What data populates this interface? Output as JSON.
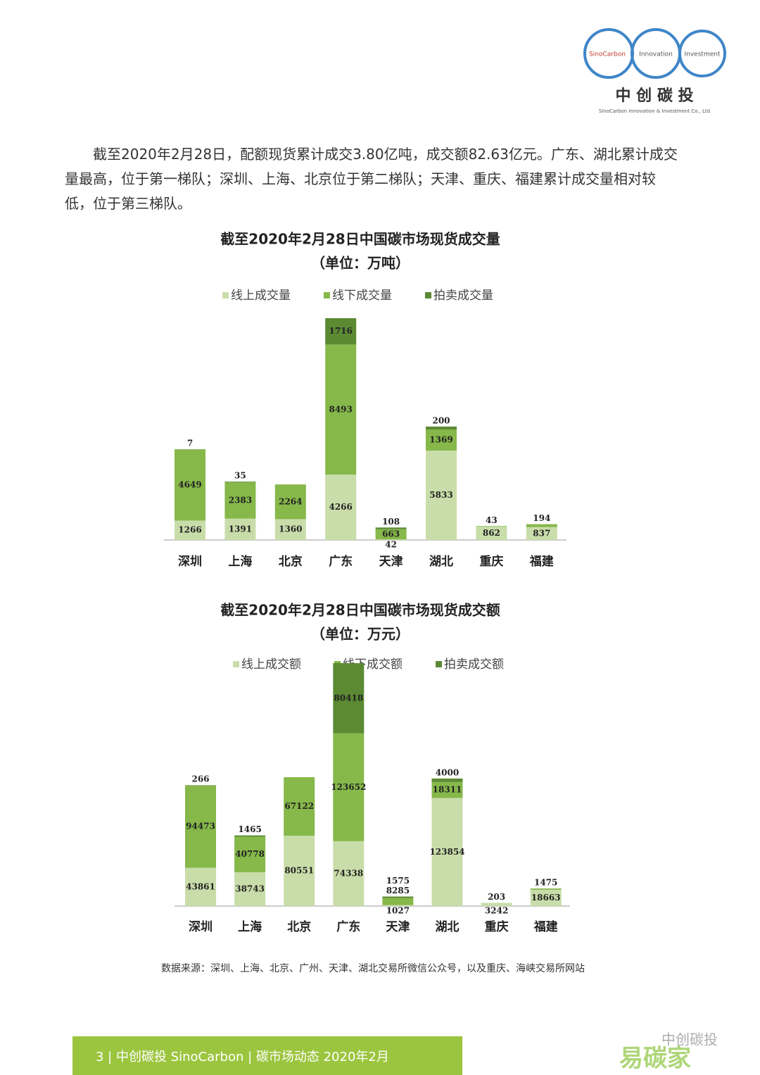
{
  "header": {
    "logo": [
      "SinoCarbon",
      "Innovation",
      "Investment"
    ],
    "company": "中 创 碳 投",
    "company_en": "SinoCarbon Innovation & Investment Co., Ltd"
  },
  "paragraph": "截至2020年2月28日，配额现货累计成交3.80亿吨，成交额82.63亿元。广东、湖北累计成交量最高，位于第一梯队；深圳、上海、北京位于第二梯队；天津、重庆、福建累计成交量相对较低，位于第三梯队。",
  "chart_data": [
    {
      "type": "stacked-bar",
      "title": "截至2020年2月28日中国碳市场现货成交量",
      "subtitle": "（单位：万吨）",
      "categories": [
        "深圳",
        "上海",
        "北京",
        "广东",
        "天津",
        "湖北",
        "重庆",
        "福建"
      ],
      "series": [
        {
          "name": "线上成交量",
          "color": "#c9ddaa",
          "values": [
            1266,
            1391,
            1360,
            4266,
            42,
            5833,
            862,
            837
          ]
        },
        {
          "name": "线下成交量",
          "color": "#86b84a",
          "values": [
            4649,
            2383,
            2264,
            8493,
            663,
            1369,
            43,
            194
          ]
        },
        {
          "name": "拍卖成交量",
          "color": "#5b8a33",
          "values": [
            7,
            35,
            null,
            1716,
            108,
            200,
            null,
            null
          ]
        }
      ]
    },
    {
      "type": "stacked-bar",
      "title": "截至2020年2月28日中国碳市场现货成交额",
      "subtitle": "（单位：万元）",
      "categories": [
        "深圳",
        "上海",
        "北京",
        "广东",
        "天津",
        "湖北",
        "重庆",
        "福建"
      ],
      "series": [
        {
          "name": "线上成交额",
          "color": "#c9ddaa",
          "values": [
            43861,
            38743,
            80551,
            74338,
            1027,
            123854,
            3242,
            18663
          ]
        },
        {
          "name": "线下成交额",
          "color": "#86b84a",
          "values": [
            94473,
            40778,
            67122,
            123652,
            8285,
            18311,
            203,
            1475
          ]
        },
        {
          "name": "拍卖成交额",
          "color": "#5b8a33",
          "values": [
            266,
            1465,
            null,
            80418,
            1575,
            4000,
            null,
            null
          ]
        }
      ]
    }
  ],
  "source": "数据来源：深圳、上海、北京、广州、天津、湖北交易所微信公众号，以及重庆、海峡交易所网站",
  "footer": "3 | 中创碳投 SinoCarbon | 碳市场动态 2020年2月",
  "watermark": [
    "中创碳投",
    "易碳家"
  ]
}
